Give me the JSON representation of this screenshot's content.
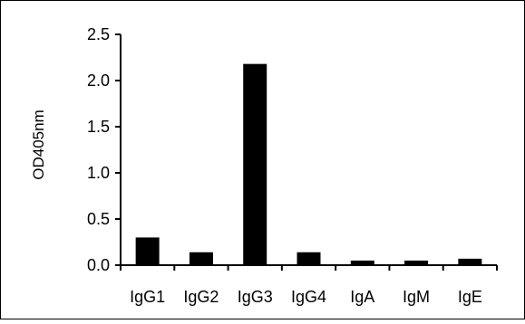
{
  "chart_data": {
    "type": "bar",
    "title": "",
    "xlabel": "",
    "ylabel": "OD405nm",
    "categories": [
      "IgG1",
      "IgG2",
      "IgG3",
      "IgG4",
      "IgA",
      "IgM",
      "IgE"
    ],
    "values": [
      0.3,
      0.14,
      2.18,
      0.14,
      0.05,
      0.05,
      0.07
    ],
    "ylim": [
      0,
      2.5
    ],
    "yticks": [
      0.0,
      0.5,
      1.0,
      1.5,
      2.0,
      2.5
    ],
    "ytick_labels": [
      "0.0",
      "0.5",
      "1.0",
      "1.5",
      "2.0",
      "2.5"
    ],
    "grid": false,
    "legend": "none",
    "bar_color": "#000000"
  }
}
